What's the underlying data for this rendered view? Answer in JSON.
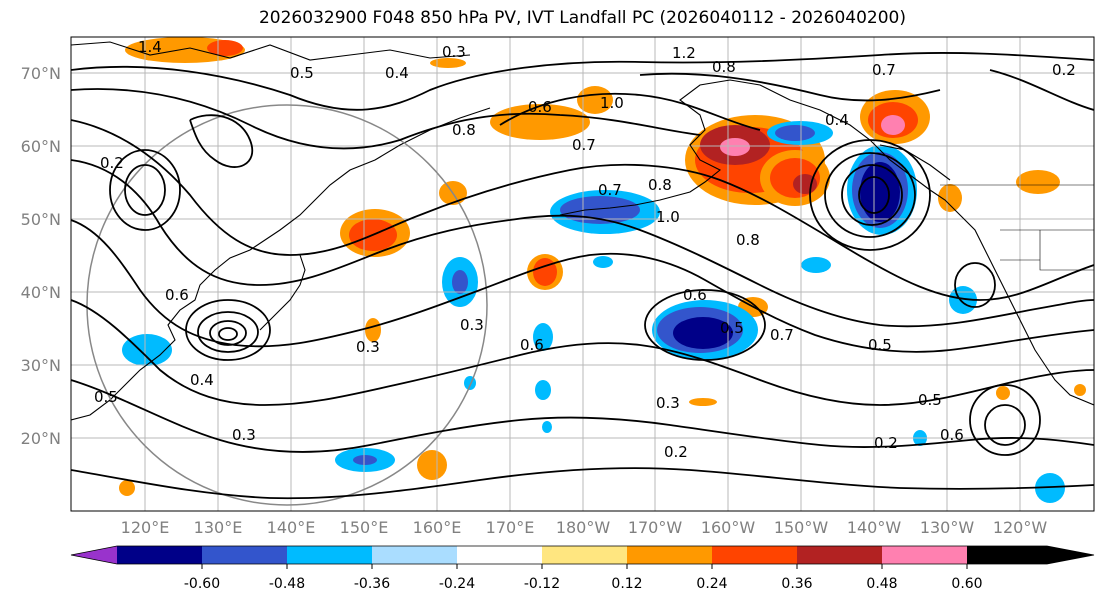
{
  "title": "2026032900 F048 850 hPa PV, IVT Landfall PC (2026040112 - 2026040200)",
  "lat_labels": [
    "70°N",
    "60°N",
    "50°N",
    "40°N",
    "30°N",
    "20°N"
  ],
  "lon_labels": [
    "120°E",
    "130°E",
    "140°E",
    "150°E",
    "160°E",
    "170°E",
    "180°W",
    "170°W",
    "160°W",
    "150°W",
    "140°W",
    "130°W",
    "120°W"
  ],
  "colorbar": {
    "colors": [
      "#9933cc",
      "#000088",
      "#3355cc",
      "#00bbff",
      "#aaddff",
      "#ffffff",
      "#ffe680",
      "#ff9900",
      "#ff4400",
      "#b22222",
      "#ff80b0"
    ],
    "tick_labels": [
      "-0.60",
      "-0.48",
      "-0.36",
      "-0.24",
      "-0.12",
      "0.12",
      "0.24",
      "0.36",
      "0.48",
      "0.60"
    ]
  },
  "contour_labels": [
    "1.4",
    "0.3",
    "0.6",
    "1.2",
    "0.8",
    "0.4",
    "0.5",
    "0.7",
    "1.0",
    "0.2",
    "0.3",
    "0.6",
    "0.7",
    "0.8",
    "1.0",
    "0.8",
    "0.6",
    "0.5",
    "0.7",
    "0.3",
    "0.2",
    "0.2",
    "0.5",
    "0.6",
    "0.4",
    "0.3",
    "0.5",
    "0.2",
    "0.4",
    "0.6",
    "0.3",
    "0.8",
    "0.7",
    "0.5"
  ]
}
